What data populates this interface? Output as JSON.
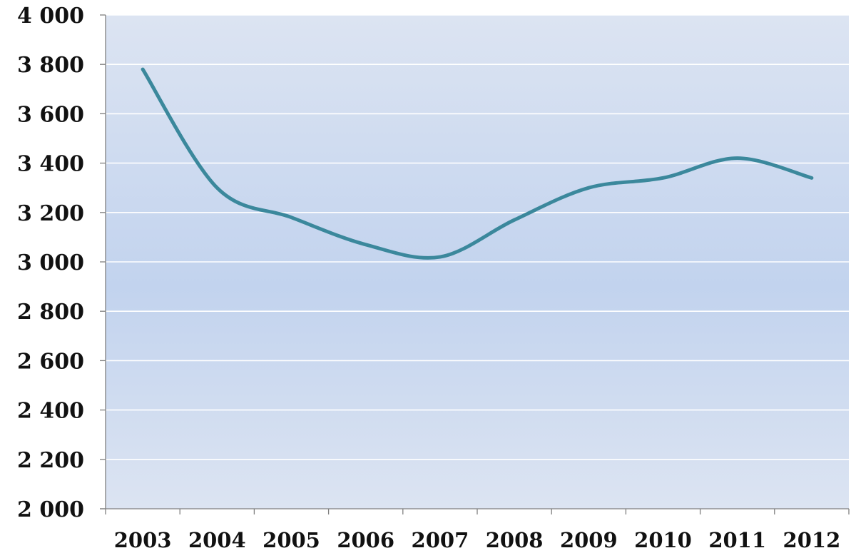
{
  "chart_data": {
    "type": "line",
    "title": "",
    "xlabel": "",
    "ylabel": "",
    "categories": [
      "2003",
      "2004",
      "2005",
      "2006",
      "2007",
      "2008",
      "2009",
      "2010",
      "2011",
      "2012"
    ],
    "series": [
      {
        "values": [
          3780,
          3300,
          3180,
          3070,
          3020,
          3170,
          3300,
          3340,
          3420,
          3340
        ],
        "color": "#3b889c",
        "smooth": true
      }
    ],
    "ylim": [
      2000,
      4000
    ],
    "y_ticks": [
      2000,
      2200,
      2400,
      2600,
      2800,
      3000,
      3200,
      3400,
      3600,
      3800,
      4000
    ],
    "y_tick_labels": [
      "2 000",
      "2 200",
      "2 400",
      "2 600",
      "2 800",
      "3 000",
      "3 200",
      "3 400",
      "3 600",
      "3 800",
      "4 000"
    ],
    "grid": true,
    "legend": "none",
    "colors": {
      "plot_background_edge": "#dce4f2",
      "plot_background_center": "#c2d3ee",
      "gridline": "#ffffff",
      "axis": "#7f7f7f",
      "line": "#3b889c"
    }
  }
}
